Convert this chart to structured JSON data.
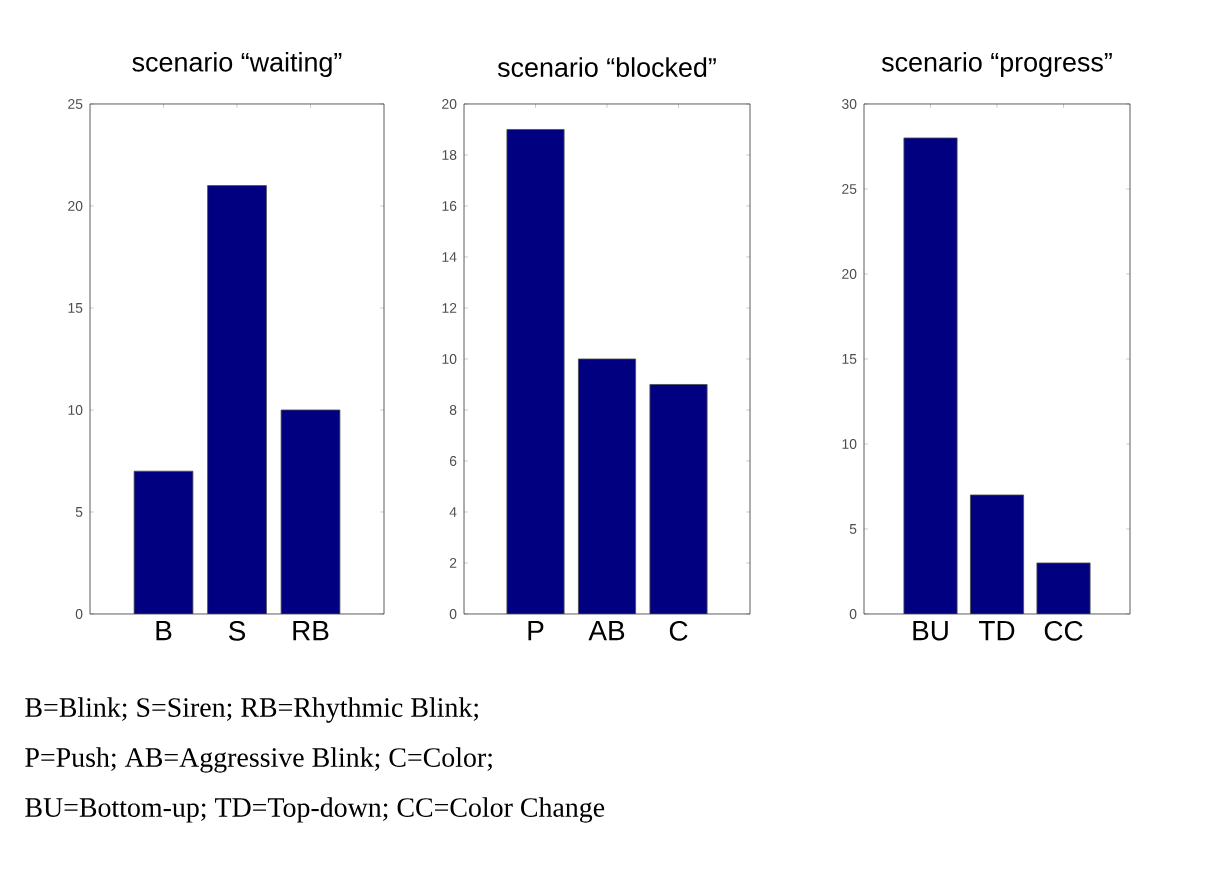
{
  "chart_data": [
    {
      "type": "bar",
      "title": "scenario “waiting”",
      "categories": [
        "B",
        "S",
        "RB"
      ],
      "values": [
        7,
        21,
        10
      ],
      "color": "#000080",
      "ylim": [
        0,
        25
      ],
      "yticks": [
        0,
        5,
        10,
        15,
        20,
        25
      ],
      "annotations": [
        "B=Blink; S=Siren; RB=Rhythmic Blink;"
      ]
    },
    {
      "type": "bar",
      "title": "scenario “blocked”",
      "categories": [
        "P",
        "AB",
        "C"
      ],
      "values": [
        19,
        10,
        9
      ],
      "color": "#000080",
      "ylim": [
        0,
        20
      ],
      "yticks": [
        0,
        2,
        4,
        6,
        8,
        10,
        12,
        14,
        16,
        18,
        20
      ],
      "annotations": [
        "P=Push; AB=Aggressive Blink; C=Color;"
      ]
    },
    {
      "type": "bar",
      "title": "scenario “progress”",
      "categories": [
        "BU",
        "TD",
        "CC"
      ],
      "values": [
        28,
        7,
        3
      ],
      "color": "#000080",
      "ylim": [
        0,
        30
      ],
      "yticks": [
        0,
        5,
        10,
        15,
        20,
        25,
        30
      ],
      "annotations": [
        "BU=Bottom-up; TD=Top-down; CC=Color Change"
      ]
    }
  ]
}
